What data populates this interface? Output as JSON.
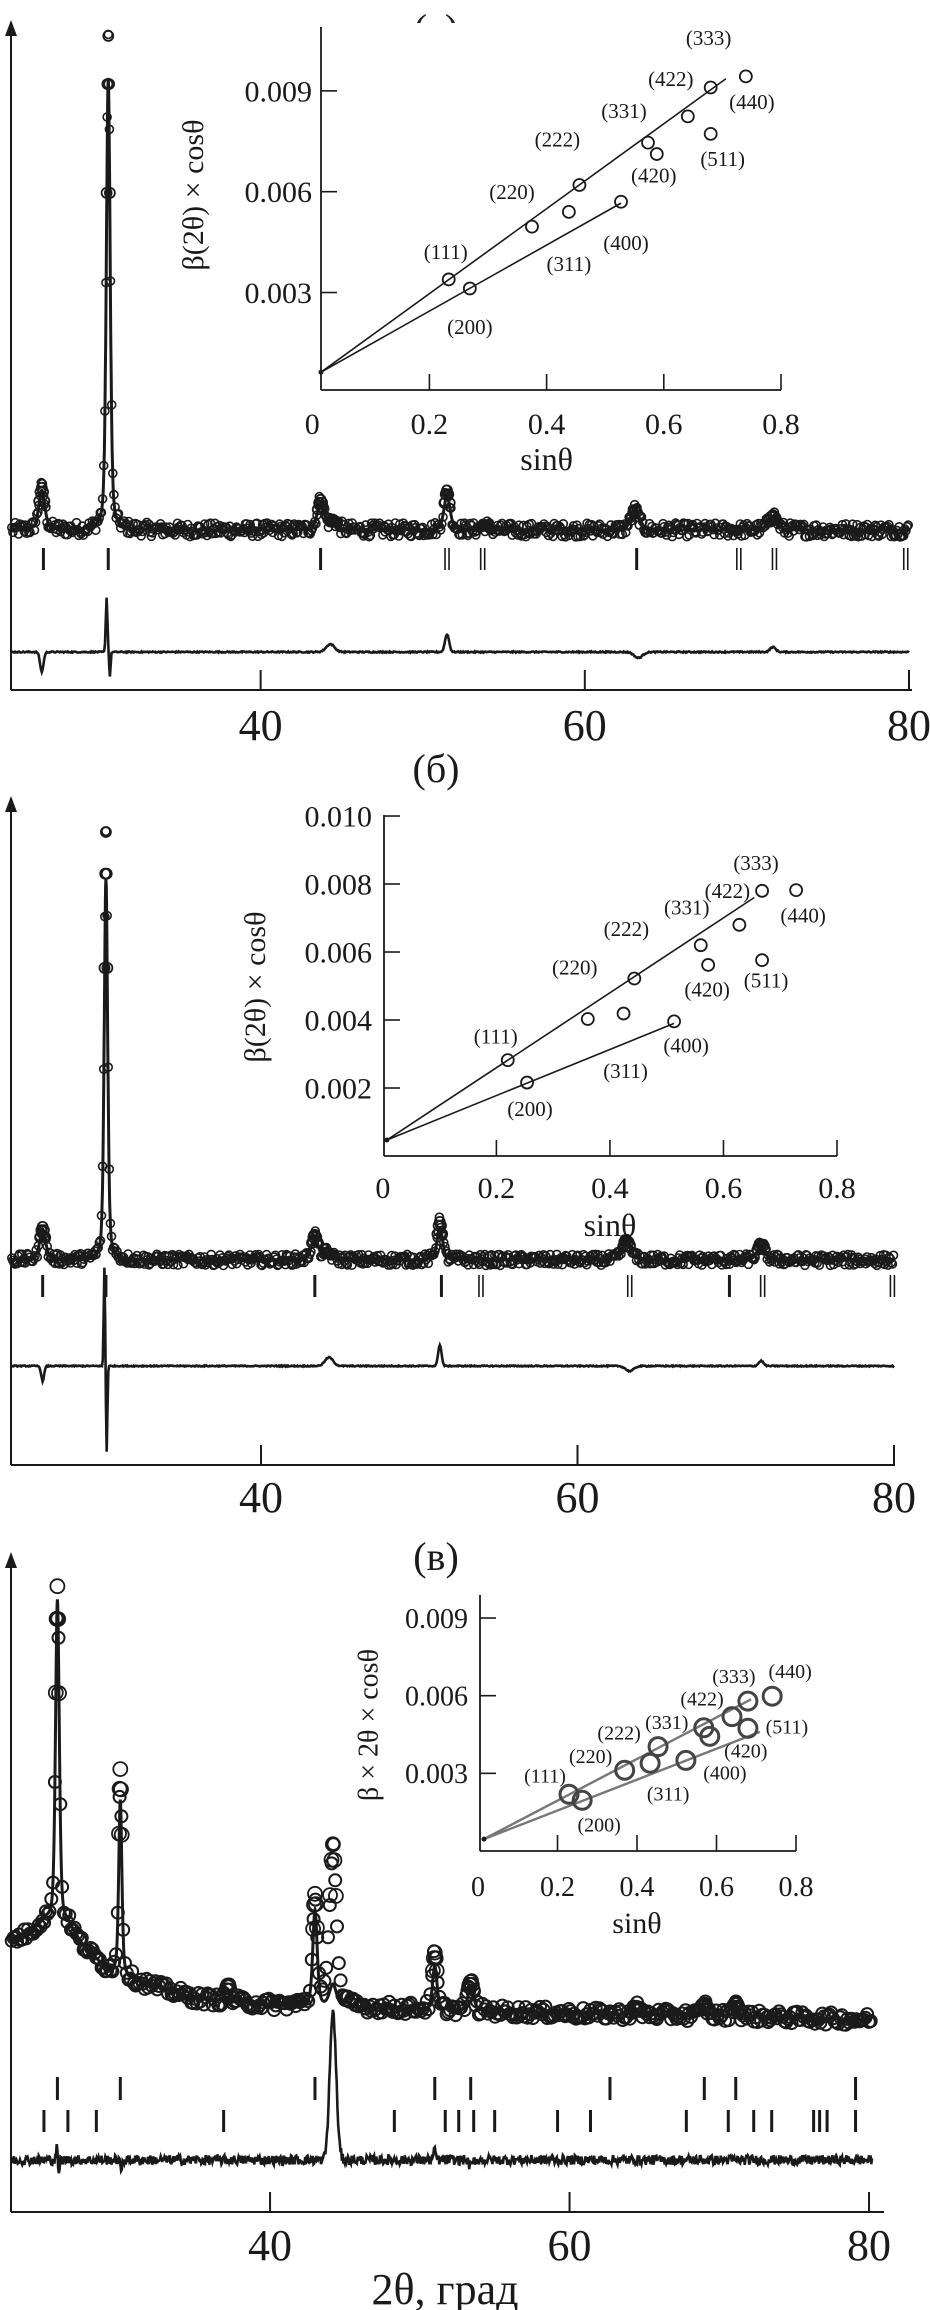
{
  "colors": {
    "ink": "#1a1a1a",
    "background": "#ffffff",
    "inset_line_c": "#777777"
  },
  "chart_data": [
    {
      "panel_label": "(a)",
      "main": {
        "type": "scatter+line",
        "xlim": [
          24.6,
          80
        ],
        "x_ticks": [
          "40",
          "60",
          "80"
        ],
        "xlabel": "",
        "background": [
          [
            24.6,
            0
          ],
          [
            80,
            0
          ]
        ],
        "peaks": [
          {
            "two_theta": 26.5,
            "obs": 8.5,
            "calc": 8.0,
            "fwhm": 0.45
          },
          {
            "two_theta": 30.6,
            "obs": 100,
            "calc": 91.5,
            "fwhm": 0.28
          },
          {
            "two_theta": 43.7,
            "obs": 6.0,
            "calc": 5.6,
            "fwhm": 0.5
          },
          {
            "two_theta": 44.5,
            "obs": 1.8,
            "calc": 1.2,
            "fwhm": 0.6
          },
          {
            "two_theta": 51.5,
            "obs": 8.0,
            "calc": 7.0,
            "fwhm": 0.45
          },
          {
            "two_theta": 53.8,
            "obs": 1.0,
            "calc": 0.9,
            "fwhm": 0.5
          },
          {
            "two_theta": 63.1,
            "obs": 4.0,
            "calc": 4.2,
            "fwhm": 0.6
          },
          {
            "two_theta": 71.6,
            "obs": 3.0,
            "calc": 2.8,
            "fwhm": 0.6
          }
        ],
        "tick_marks": [
          [
            {
              "pos": 26.6
            },
            {
              "pos": 30.6
            },
            {
              "pos": 43.7
            },
            {
              "pos": 51.5,
              "double": true
            },
            {
              "pos": 53.7,
              "double": true
            },
            {
              "pos": 63.2
            },
            {
              "pos": 69.5,
              "double": true
            },
            {
              "pos": 71.7,
              "double": true
            },
            {
              "pos": 79.8,
              "double": true
            }
          ]
        ],
        "difference_features": [
          [
            26.5,
            -4,
            0.25
          ],
          [
            30.5,
            11,
            0.12
          ],
          [
            30.7,
            -5,
            0.1
          ],
          [
            44.3,
            1.6,
            0.6
          ],
          [
            51.5,
            3.6,
            0.3
          ],
          [
            63.3,
            -1.2,
            0.6
          ],
          [
            71.6,
            1.0,
            0.4
          ]
        ],
        "noise": 1.4
      },
      "inset": {
        "type": "scatter",
        "xlabel": "sinθ",
        "ylabel": "β(2θ) × cosθ",
        "xlim": [
          0.015,
          0.8
        ],
        "ylim": [
          0.0001,
          0.0109
        ],
        "x_ticks": [
          "0",
          "0.2",
          "0.4",
          "0.6",
          "0.8"
        ],
        "y_ticks": [
          "0.003",
          "0.006",
          "0.009"
        ],
        "points": [
          {
            "hkl": "(111)",
            "x": 0.233,
            "y": 0.00339
          },
          {
            "hkl": "(200)",
            "x": 0.269,
            "y": 0.00312
          },
          {
            "hkl": "(220)",
            "x": 0.375,
            "y": 0.00496
          },
          {
            "hkl": "(311)",
            "x": 0.438,
            "y": 0.0054
          },
          {
            "hkl": "(222)",
            "x": 0.456,
            "y": 0.0062
          },
          {
            "hkl": "(400)",
            "x": 0.527,
            "y": 0.0057
          },
          {
            "hkl": "(331)",
            "x": 0.573,
            "y": 0.00746
          },
          {
            "hkl": "(420)",
            "x": 0.588,
            "y": 0.00712
          },
          {
            "hkl": "(422)",
            "x": 0.641,
            "y": 0.00824
          },
          {
            "hkl": "(511)",
            "x": 0.68,
            "y": 0.00772
          },
          {
            "hkl": "(333)",
            "x": 0.68,
            "y": 0.0091
          },
          {
            "hkl": "(440)",
            "x": 0.74,
            "y": 0.00943
          }
        ],
        "fit_lines": [
          {
            "from": [
              0.015,
              0.00063
            ],
            "to": [
              0.706,
              0.00936
            ]
          },
          {
            "from": [
              0.015,
              0.00063
            ],
            "to": [
              0.527,
              0.00566
            ]
          }
        ]
      }
    },
    {
      "panel_label": "(б)",
      "main": {
        "type": "scatter+line",
        "xlim": [
          24.2,
          80
        ],
        "x_ticks": [
          "40",
          "60",
          "80"
        ],
        "xlabel": "",
        "background": [
          [
            24.2,
            0
          ],
          [
            80,
            0
          ]
        ],
        "peaks": [
          {
            "two_theta": 26.2,
            "obs": 7.7,
            "calc": 7.2,
            "fwhm": 0.45
          },
          {
            "two_theta": 30.2,
            "obs": 100,
            "calc": 89,
            "fwhm": 0.26
          },
          {
            "two_theta": 43.4,
            "obs": 5.8,
            "calc": 5.4,
            "fwhm": 0.5
          },
          {
            "two_theta": 44.2,
            "obs": 1.6,
            "calc": 1.0,
            "fwhm": 0.6
          },
          {
            "two_theta": 51.3,
            "obs": 8.9,
            "calc": 7.5,
            "fwhm": 0.42
          },
          {
            "two_theta": 63.1,
            "obs": 4.7,
            "calc": 4.8,
            "fwhm": 0.6
          },
          {
            "two_theta": 71.6,
            "obs": 3.5,
            "calc": 3.3,
            "fwhm": 0.6
          }
        ],
        "tick_marks": [
          [
            {
              "pos": 26.2
            },
            {
              "pos": 30.2
            },
            {
              "pos": 43.4
            },
            {
              "pos": 51.4
            },
            {
              "pos": 53.9,
              "double": true
            },
            {
              "pos": 63.3,
              "double": true
            },
            {
              "pos": 69.6
            },
            {
              "pos": 71.7,
              "double": true
            },
            {
              "pos": 79.9,
              "double": true
            }
          ]
        ],
        "difference_features": [
          [
            26.2,
            -3.5,
            0.22
          ],
          [
            30.1,
            23,
            0.1
          ],
          [
            30.25,
            -20,
            0.1
          ],
          [
            44.3,
            2.0,
            0.6
          ],
          [
            51.3,
            5.0,
            0.25
          ],
          [
            63.3,
            -1.2,
            0.6
          ],
          [
            71.6,
            1.2,
            0.35
          ]
        ],
        "noise": 1.3
      },
      "inset": {
        "type": "scatter",
        "xlabel": "sinθ",
        "ylabel": "β(2θ) × cosθ",
        "xlim": [
          0.002,
          0.8
        ],
        "ylim": [
          0,
          0.01003
        ],
        "x_ticks": [
          "0",
          "0.2",
          "0.4",
          "0.6",
          "0.8"
        ],
        "y_ticks": [
          "0.002",
          "0.004",
          "0.006",
          "0.008",
          "0.010"
        ],
        "points": [
          {
            "hkl": "(111)",
            "x": 0.22,
            "y": 0.00282
          },
          {
            "hkl": "(200)",
            "x": 0.254,
            "y": 0.00216
          },
          {
            "hkl": "(220)",
            "x": 0.361,
            "y": 0.00403
          },
          {
            "hkl": "(311)",
            "x": 0.424,
            "y": 0.00419
          },
          {
            "hkl": "(222)",
            "x": 0.443,
            "y": 0.00522
          },
          {
            "hkl": "(400)",
            "x": 0.513,
            "y": 0.00396
          },
          {
            "hkl": "(331)",
            "x": 0.56,
            "y": 0.0062
          },
          {
            "hkl": "(420)",
            "x": 0.573,
            "y": 0.00562
          },
          {
            "hkl": "(422)",
            "x": 0.628,
            "y": 0.0068
          },
          {
            "hkl": "(511)",
            "x": 0.668,
            "y": 0.00576
          },
          {
            "hkl": "(333)",
            "x": 0.668,
            "y": 0.0078
          },
          {
            "hkl": "(440)",
            "x": 0.728,
            "y": 0.00782
          }
        ],
        "fit_lines": [
          {
            "from": [
              0.007,
              0.00047
            ],
            "to": [
              0.654,
              0.0076
            ]
          },
          {
            "from": [
              0.007,
              0.00047
            ],
            "to": [
              0.513,
              0.0039
            ]
          }
        ]
      }
    },
    {
      "panel_label": "(в)",
      "main": {
        "type": "scatter+line",
        "xlim": [
          22.7,
          81
        ],
        "x_ticks": [
          "40",
          "60",
          "80"
        ],
        "xlabel": "2θ, град",
        "background": [
          [
            22.7,
            18
          ],
          [
            24,
            20
          ],
          [
            25,
            23
          ],
          [
            26.5,
            22
          ],
          [
            27.5,
            17
          ],
          [
            29,
            12
          ],
          [
            31,
            9
          ],
          [
            35,
            5
          ],
          [
            40,
            3.5
          ],
          [
            50,
            2.5
          ],
          [
            60,
            1.5
          ],
          [
            70,
            1
          ],
          [
            81,
            0
          ]
        ],
        "peaks": [
          {
            "two_theta": 25.8,
            "obs": 77,
            "calc": 74,
            "fwhm": 0.3
          },
          {
            "two_theta": 30.0,
            "obs": 47,
            "calc": 40,
            "fwhm": 0.25
          },
          {
            "two_theta": 37.2,
            "obs": 3.5,
            "calc": 1,
            "fwhm": 0.3
          },
          {
            "two_theta": 43.0,
            "obs": 25,
            "calc": 22,
            "fwhm": 0.35
          },
          {
            "two_theta": 44.2,
            "obs": 37,
            "calc": 5,
            "fwhm": 0.55
          },
          {
            "two_theta": 51.0,
            "obs": 13,
            "calc": 10,
            "fwhm": 0.35
          },
          {
            "two_theta": 53.4,
            "obs": 6.5,
            "calc": 5.5,
            "fwhm": 0.45
          },
          {
            "two_theta": 64.5,
            "obs": 1.5,
            "calc": 1,
            "fwhm": 0.5
          },
          {
            "two_theta": 69.0,
            "obs": 2.5,
            "calc": 1.8,
            "fwhm": 0.4
          },
          {
            "two_theta": 71.1,
            "obs": 2.8,
            "calc": 2,
            "fwhm": 0.4
          }
        ],
        "tick_marks": [
          [
            {
              "pos": 25.8
            },
            {
              "pos": 30.0
            },
            {
              "pos": 43.0
            },
            {
              "pos": 51.0
            },
            {
              "pos": 53.4
            },
            {
              "pos": 62.7
            },
            {
              "pos": 69.0
            },
            {
              "pos": 71.1
            },
            {
              "pos": 79.1
            }
          ],
          [
            {
              "pos": 24.9
            },
            {
              "pos": 26.5
            },
            {
              "pos": 28.4
            },
            {
              "pos": 36.9
            },
            {
              "pos": 48.3
            },
            {
              "pos": 51.7
            },
            {
              "pos": 52.6
            },
            {
              "pos": 53.6
            },
            {
              "pos": 55.0
            },
            {
              "pos": 59.2
            },
            {
              "pos": 61.4
            },
            {
              "pos": 67.8
            },
            {
              "pos": 70.6
            },
            {
              "pos": 72.3
            },
            {
              "pos": 73.5
            },
            {
              "pos": 76.3
            },
            {
              "pos": 76.7
            },
            {
              "pos": 77.2
            },
            {
              "pos": 79.1
            }
          ]
        ],
        "difference_features": [
          [
            44.2,
            34,
            0.5
          ],
          [
            25.75,
            4,
            0.08
          ],
          [
            25.9,
            -4,
            0.08
          ],
          [
            30.05,
            -3.5,
            0.1
          ],
          [
            51.0,
            2,
            0.2
          ],
          [
            53.4,
            -1.5,
            0.3
          ]
        ],
        "noise": 1.4
      },
      "inset": {
        "type": "scatter",
        "xlabel": "sinθ",
        "ylabel": "β × 2θ × cosθ",
        "xlim": [
          0.005,
          0.8
        ],
        "ylim": [
          0,
          0.00989
        ],
        "x_ticks": [
          "0",
          "0.2",
          "0.4",
          "0.6",
          "0.8"
        ],
        "y_ticks": [
          "0.003",
          "0.006",
          "0.009"
        ],
        "points": [
          {
            "hkl": "(111)",
            "x": 0.229,
            "y": 0.00219
          },
          {
            "hkl": "(200)",
            "x": 0.262,
            "y": 0.00196
          },
          {
            "hkl": "(220)",
            "x": 0.369,
            "y": 0.00312
          },
          {
            "hkl": "(311)",
            "x": 0.433,
            "y": 0.00339
          },
          {
            "hkl": "(222)",
            "x": 0.453,
            "y": 0.00403
          },
          {
            "hkl": "(400)",
            "x": 0.523,
            "y": 0.0035
          },
          {
            "hkl": "(331)",
            "x": 0.568,
            "y": 0.00476
          },
          {
            "hkl": "(420)",
            "x": 0.583,
            "y": 0.00443
          },
          {
            "hkl": "(422)",
            "x": 0.639,
            "y": 0.00519
          },
          {
            "hkl": "(511)",
            "x": 0.679,
            "y": 0.00474
          },
          {
            "hkl": "(333)",
            "x": 0.679,
            "y": 0.00579
          },
          {
            "hkl": "(440)",
            "x": 0.74,
            "y": 0.00598
          }
        ],
        "fit_lines": [
          {
            "from": [
              0.015,
              0.00046
            ],
            "to": [
              0.687,
              0.00586
            ]
          },
          {
            "from": [
              0.015,
              0.00046
            ],
            "to": [
              0.709,
              0.0046
            ]
          }
        ]
      }
    }
  ]
}
